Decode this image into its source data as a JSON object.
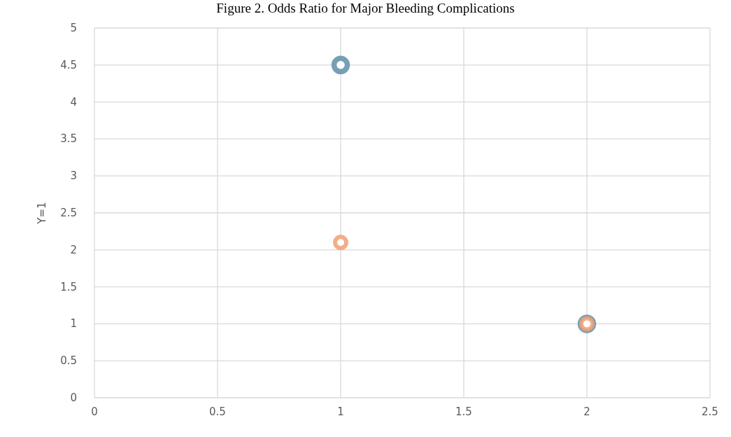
{
  "chart_data": {
    "type": "scatter",
    "title": "Figure 2. Odds Ratio for Major Bleeding Complications",
    "ylabel": "Y=1",
    "x": [
      1,
      2
    ],
    "series": [
      {
        "color": "#5f8fa8",
        "values": [
          4.5,
          1
        ]
      },
      {
        "color": "#f0a074",
        "values": [
          2.1,
          1
        ]
      }
    ],
    "xlim": [
      0,
      2.5
    ],
    "xticks": [
      0,
      0.5,
      1,
      1.5,
      2,
      2.5
    ],
    "ylim": [
      0,
      5
    ],
    "yticks": [
      0,
      0.5,
      1,
      1.5,
      2,
      2.5,
      3,
      3.5,
      4,
      4.5,
      5
    ],
    "grid": true,
    "marker": "circle"
  }
}
